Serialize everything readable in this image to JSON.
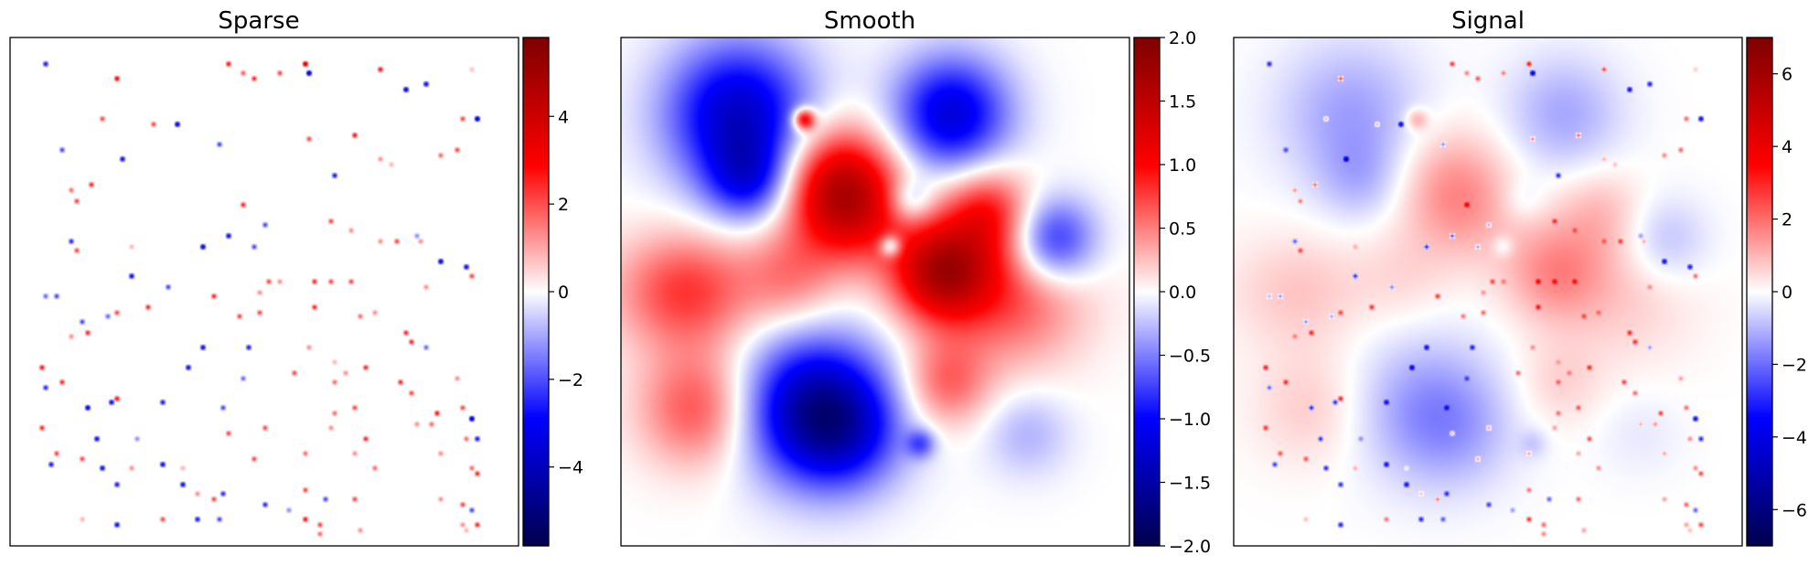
{
  "chart_data": [
    {
      "type": "heatmap",
      "title": "Sparse",
      "colormap": "seismic",
      "colorbar": {
        "range": [
          -5.8,
          5.8
        ],
        "ticks": [
          -4,
          -2,
          0,
          2,
          4
        ],
        "tick_labels": [
          "−4",
          "−2",
          "0",
          "2",
          "4"
        ]
      },
      "features": {
        "kind": "sparse spikes on zero background",
        "spikes": [
          [
            0.07,
            0.05,
            -3.5
          ],
          [
            0.21,
            0.08,
            4.0
          ],
          [
            0.43,
            0.05,
            3.5
          ],
          [
            0.46,
            0.07,
            2.2
          ],
          [
            0.48,
            0.08,
            3.0
          ],
          [
            0.53,
            0.07,
            2.5
          ],
          [
            0.58,
            0.05,
            5.0
          ],
          [
            0.59,
            0.07,
            -5.0
          ],
          [
            0.73,
            0.06,
            3.5
          ],
          [
            0.78,
            0.1,
            -4.5
          ],
          [
            0.82,
            0.09,
            -4.0
          ],
          [
            0.91,
            0.06,
            0.8
          ],
          [
            0.89,
            0.16,
            2.5
          ],
          [
            0.92,
            0.16,
            -5.0
          ],
          [
            0.18,
            0.16,
            2.5
          ],
          [
            0.28,
            0.17,
            2.5
          ],
          [
            0.33,
            0.17,
            -4.5
          ],
          [
            0.1,
            0.22,
            -2.5
          ],
          [
            0.22,
            0.24,
            -4.0
          ],
          [
            0.41,
            0.21,
            -2.5
          ],
          [
            0.59,
            0.2,
            2.5
          ],
          [
            0.68,
            0.19,
            3.5
          ],
          [
            0.64,
            0.27,
            -3.5
          ],
          [
            0.73,
            0.24,
            1.5
          ],
          [
            0.75,
            0.25,
            1.0
          ],
          [
            0.85,
            0.23,
            2.0
          ],
          [
            0.88,
            0.22,
            2.5
          ],
          [
            0.12,
            0.3,
            2.0
          ],
          [
            0.13,
            0.32,
            2.5
          ],
          [
            0.16,
            0.29,
            3.0
          ],
          [
            0.46,
            0.33,
            3.0
          ],
          [
            0.5,
            0.37,
            -2.5
          ],
          [
            0.63,
            0.36,
            2.5
          ],
          [
            0.67,
            0.38,
            1.5
          ],
          [
            0.73,
            0.4,
            1.5
          ],
          [
            0.76,
            0.4,
            2.5
          ],
          [
            0.8,
            0.39,
            -1.5
          ],
          [
            0.81,
            0.4,
            1.5
          ],
          [
            0.12,
            0.4,
            -3.0
          ],
          [
            0.13,
            0.42,
            2.5
          ],
          [
            0.24,
            0.41,
            1.0
          ],
          [
            0.38,
            0.41,
            -4.5
          ],
          [
            0.43,
            0.39,
            -4.0
          ],
          [
            0.48,
            0.41,
            -2.5
          ],
          [
            0.85,
            0.44,
            -4.5
          ],
          [
            0.9,
            0.45,
            -4.0
          ],
          [
            0.91,
            0.47,
            2.5
          ],
          [
            0.24,
            0.47,
            -4.0
          ],
          [
            0.31,
            0.49,
            -2.5
          ],
          [
            0.4,
            0.51,
            3.0
          ],
          [
            0.49,
            0.5,
            1.5
          ],
          [
            0.51,
            0.48,
            2.5
          ],
          [
            0.53,
            0.48,
            1.5
          ],
          [
            0.6,
            0.48,
            3.0
          ],
          [
            0.63,
            0.48,
            2.5
          ],
          [
            0.67,
            0.48,
            2.5
          ],
          [
            0.82,
            0.49,
            1.5
          ],
          [
            0.07,
            0.51,
            -2.0
          ],
          [
            0.09,
            0.51,
            -2.5
          ],
          [
            0.14,
            0.56,
            -2.5
          ],
          [
            0.15,
            0.58,
            3.0
          ],
          [
            0.19,
            0.55,
            -2.0
          ],
          [
            0.21,
            0.54,
            2.5
          ],
          [
            0.27,
            0.53,
            3.0
          ],
          [
            0.45,
            0.55,
            2.5
          ],
          [
            0.49,
            0.54,
            2.5
          ],
          [
            0.6,
            0.53,
            3.0
          ],
          [
            0.69,
            0.55,
            2.0
          ],
          [
            0.72,
            0.54,
            1.5
          ],
          [
            0.78,
            0.58,
            3.0
          ],
          [
            0.12,
            0.59,
            1.5
          ],
          [
            0.38,
            0.61,
            -4.0
          ],
          [
            0.47,
            0.61,
            -3.5
          ],
          [
            0.79,
            0.6,
            3.0
          ],
          [
            0.82,
            0.61,
            -2.0
          ],
          [
            0.06,
            0.65,
            3.5
          ],
          [
            0.07,
            0.69,
            -3.0
          ],
          [
            0.1,
            0.68,
            3.0
          ],
          [
            0.35,
            0.65,
            -4.0
          ],
          [
            0.46,
            0.67,
            -2.0
          ],
          [
            0.56,
            0.66,
            2.5
          ],
          [
            0.59,
            0.61,
            1.5
          ],
          [
            0.64,
            0.68,
            2.0
          ],
          [
            0.66,
            0.66,
            1.5
          ],
          [
            0.7,
            0.65,
            3.0
          ],
          [
            0.77,
            0.68,
            3.0
          ],
          [
            0.79,
            0.7,
            2.5
          ],
          [
            0.88,
            0.67,
            1.5
          ],
          [
            0.21,
            0.71,
            3.5
          ],
          [
            0.15,
            0.73,
            -4.5
          ],
          [
            0.2,
            0.72,
            -4.0
          ],
          [
            0.3,
            0.72,
            -3.5
          ],
          [
            0.42,
            0.73,
            -2.5
          ],
          [
            0.64,
            0.74,
            2.0
          ],
          [
            0.84,
            0.74,
            3.5
          ],
          [
            0.89,
            0.73,
            2.5
          ],
          [
            0.17,
            0.79,
            -4.0
          ],
          [
            0.25,
            0.79,
            -1.5
          ],
          [
            0.43,
            0.78,
            2.5
          ],
          [
            0.5,
            0.77,
            2.5
          ],
          [
            0.7,
            0.79,
            3.0
          ],
          [
            0.8,
            0.76,
            1.5
          ],
          [
            0.83,
            0.76,
            2.0
          ],
          [
            0.91,
            0.75,
            -5.0
          ],
          [
            0.9,
            0.79,
            2.0
          ],
          [
            0.92,
            0.79,
            -3.5
          ],
          [
            0.09,
            0.82,
            2.5
          ],
          [
            0.08,
            0.84,
            -3.5
          ],
          [
            0.14,
            0.83,
            2.5
          ],
          [
            0.18,
            0.85,
            -4.0
          ],
          [
            0.21,
            0.88,
            -3.5
          ],
          [
            0.24,
            0.85,
            1.5
          ],
          [
            0.3,
            0.84,
            -4.0
          ],
          [
            0.34,
            0.85,
            1.0
          ],
          [
            0.48,
            0.83,
            2.5
          ],
          [
            0.58,
            0.82,
            2.0
          ],
          [
            0.68,
            0.82,
            1.5
          ],
          [
            0.85,
            0.82,
            1.5
          ],
          [
            0.91,
            0.85,
            2.0
          ],
          [
            0.92,
            0.86,
            3.0
          ],
          [
            0.34,
            0.88,
            -4.0
          ],
          [
            0.37,
            0.9,
            1.5
          ],
          [
            0.4,
            0.91,
            2.5
          ],
          [
            0.42,
            0.9,
            -3.0
          ],
          [
            0.5,
            0.92,
            -3.0
          ],
          [
            0.58,
            0.89,
            2.5
          ],
          [
            0.62,
            0.91,
            -2.5
          ],
          [
            0.68,
            0.91,
            2.5
          ],
          [
            0.85,
            0.91,
            1.5
          ],
          [
            0.89,
            0.92,
            2.5
          ],
          [
            0.91,
            0.93,
            -2.5
          ],
          [
            0.58,
            0.95,
            3.5
          ],
          [
            0.61,
            0.96,
            2.5
          ],
          [
            0.89,
            0.96,
            1.5
          ],
          [
            0.92,
            0.96,
            3.0
          ],
          [
            0.21,
            0.96,
            -4.0
          ],
          [
            0.3,
            0.95,
            2.5
          ],
          [
            0.37,
            0.95,
            -3.5
          ],
          [
            0.41,
            0.95,
            -2.5
          ],
          [
            0.14,
            0.95,
            1.0
          ],
          [
            0.55,
            0.93,
            -1.5
          ],
          [
            0.61,
            0.98,
            2.0
          ],
          [
            0.69,
            0.97,
            1.5
          ],
          [
            0.9,
            0.97,
            1.0
          ],
          [
            0.63,
            0.77,
            1.5
          ],
          [
            0.72,
            0.85,
            2.0
          ],
          [
            0.68,
            0.73,
            2.5
          ],
          [
            0.64,
            0.64,
            1.0
          ],
          [
            0.06,
            0.77,
            3.0
          ]
        ]
      }
    },
    {
      "type": "heatmap",
      "title": "Smooth",
      "colormap": "seismic",
      "colorbar": {
        "range": [
          -2.0,
          2.0
        ],
        "ticks": [
          -2.0,
          -1.5,
          -1.0,
          -0.5,
          0.0,
          0.5,
          1.0,
          1.5,
          2.0
        ],
        "tick_labels": [
          "−2.0",
          "−1.5",
          "−1.0",
          "−0.5",
          "0.0",
          "0.5",
          "1.0",
          "1.5",
          "2.0"
        ]
      },
      "features": {
        "kind": "smooth field (sum of bumps)",
        "bumps": [
          [
            0.23,
            0.15,
            0.1,
            -1.3
          ],
          [
            0.25,
            0.28,
            0.06,
            -0.8
          ],
          [
            0.65,
            0.15,
            0.08,
            -1.2
          ],
          [
            0.43,
            0.29,
            0.08,
            1.4
          ],
          [
            0.46,
            0.36,
            0.07,
            0.5
          ],
          [
            0.63,
            0.46,
            0.07,
            1.5
          ],
          [
            0.72,
            0.34,
            0.06,
            0.8
          ],
          [
            0.85,
            0.4,
            0.06,
            -1.0
          ],
          [
            0.77,
            0.5,
            0.1,
            0.7
          ],
          [
            0.06,
            0.5,
            0.08,
            0.3
          ],
          [
            0.15,
            0.5,
            0.08,
            0.6
          ],
          [
            0.33,
            0.47,
            0.07,
            0.5
          ],
          [
            0.15,
            0.73,
            0.08,
            0.7
          ],
          [
            0.38,
            0.73,
            0.1,
            -1.4
          ],
          [
            0.44,
            0.78,
            0.08,
            -0.6
          ],
          [
            0.64,
            0.68,
            0.06,
            0.6
          ],
          [
            0.8,
            0.78,
            0.06,
            -0.3
          ],
          [
            0.57,
            0.32,
            0.03,
            -0.5
          ],
          [
            0.59,
            0.8,
            0.02,
            -0.6
          ],
          [
            0.36,
            0.16,
            0.015,
            1.3
          ],
          [
            0.53,
            0.41,
            0.015,
            -0.8
          ]
        ]
      }
    },
    {
      "type": "heatmap",
      "title": "Signal",
      "colormap": "seismic",
      "colorbar": {
        "range": [
          -7.0,
          7.0
        ],
        "ticks": [
          -6,
          -4,
          -2,
          0,
          2,
          4,
          6
        ],
        "tick_labels": [
          "−6",
          "−4",
          "−2",
          "0",
          "2",
          "4",
          "6"
        ]
      },
      "features": {
        "kind": "sum of Sparse and Smooth fields"
      }
    }
  ]
}
